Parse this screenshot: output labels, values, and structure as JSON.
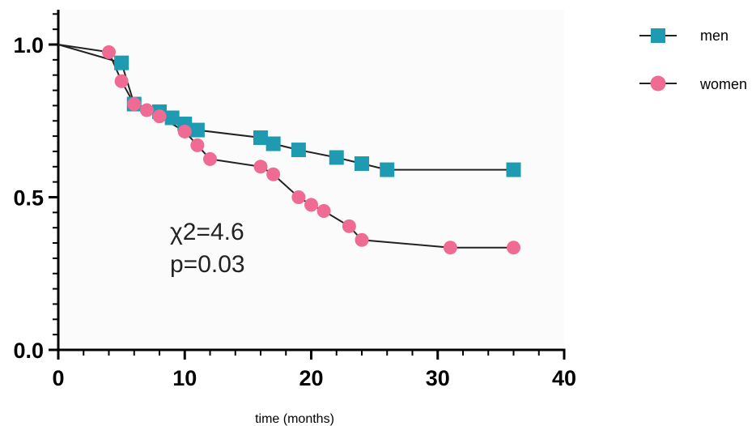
{
  "chart_data": {
    "type": "line",
    "title": "",
    "xlabel": "time (months)",
    "ylabel": "",
    "xlim": [
      0,
      40
    ],
    "ylim": [
      0,
      1.0
    ],
    "x_ticks": [
      "0",
      "10",
      "20",
      "30",
      "40"
    ],
    "y_ticks": [
      "0.0",
      "0.5",
      "1.0"
    ],
    "grid": false,
    "legend_position": "top-right",
    "series": [
      {
        "name": "men",
        "color": "#1e9bb0",
        "marker": "square",
        "points": [
          [
            0,
            1.0
          ],
          [
            5,
            0.94
          ],
          [
            6,
            0.805
          ],
          [
            8,
            0.78
          ],
          [
            9,
            0.76
          ],
          [
            10,
            0.74
          ],
          [
            11,
            0.72
          ],
          [
            16,
            0.695
          ],
          [
            17,
            0.675
          ],
          [
            19,
            0.655
          ],
          [
            22,
            0.63
          ],
          [
            24,
            0.61
          ],
          [
            26,
            0.59
          ],
          [
            36,
            0.59
          ]
        ],
        "marked": [
          [
            5,
            0.94
          ],
          [
            6,
            0.805
          ],
          [
            8,
            0.78
          ],
          [
            9,
            0.76
          ],
          [
            10,
            0.74
          ],
          [
            11,
            0.72
          ],
          [
            16,
            0.695
          ],
          [
            17,
            0.675
          ],
          [
            19,
            0.655
          ],
          [
            22,
            0.63
          ],
          [
            24,
            0.61
          ],
          [
            26,
            0.59
          ],
          [
            36,
            0.59
          ]
        ]
      },
      {
        "name": "women",
        "color": "#ef6b94",
        "marker": "circle",
        "points": [
          [
            0,
            1.0
          ],
          [
            4,
            0.975
          ],
          [
            5,
            0.88
          ],
          [
            6,
            0.805
          ],
          [
            7,
            0.785
          ],
          [
            8,
            0.765
          ],
          [
            10,
            0.715
          ],
          [
            11,
            0.67
          ],
          [
            12,
            0.625
          ],
          [
            16,
            0.6
          ],
          [
            17,
            0.575
          ],
          [
            19,
            0.5
          ],
          [
            20,
            0.475
          ],
          [
            21,
            0.455
          ],
          [
            23,
            0.405
          ],
          [
            24,
            0.36
          ],
          [
            31,
            0.335
          ],
          [
            36,
            0.335
          ]
        ],
        "marked": [
          [
            4,
            0.975
          ],
          [
            5,
            0.88
          ],
          [
            6,
            0.805
          ],
          [
            7,
            0.785
          ],
          [
            8,
            0.765
          ],
          [
            10,
            0.715
          ],
          [
            11,
            0.67
          ],
          [
            12,
            0.625
          ],
          [
            16,
            0.6
          ],
          [
            17,
            0.575
          ],
          [
            19,
            0.5
          ],
          [
            20,
            0.475
          ],
          [
            21,
            0.455
          ],
          [
            23,
            0.405
          ],
          [
            24,
            0.36
          ],
          [
            31,
            0.335
          ],
          [
            36,
            0.335
          ]
        ]
      }
    ],
    "annotations": [
      "χ2=4.6",
      "p=0.03"
    ]
  }
}
